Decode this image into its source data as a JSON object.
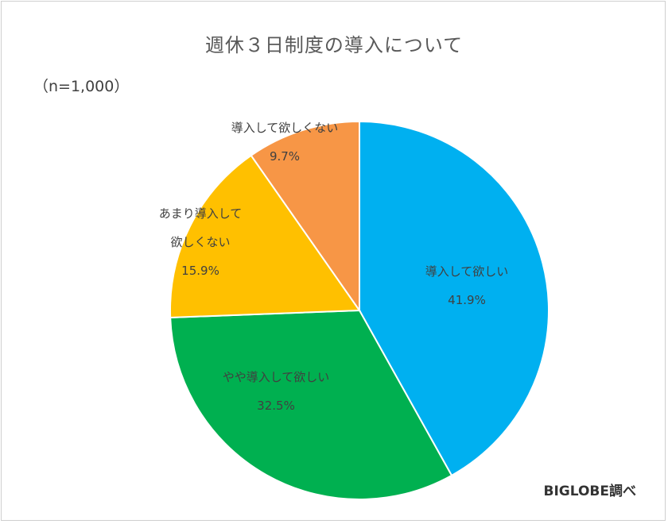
{
  "chart_data": {
    "type": "pie",
    "title": "週休３日制度の導入について",
    "subtitle": "（n=1,000）",
    "source": "BIGLOBE調べ",
    "slices": [
      {
        "label": "導入して欲しい",
        "value": 41.9,
        "value_label": "41.9%",
        "color": "#00b0f0"
      },
      {
        "label": "やや導入して欲しい",
        "value": 32.5,
        "value_label": "32.5%",
        "color": "#00b050"
      },
      {
        "label": "あまり導入して欲しくない",
        "value": 15.9,
        "value_label": "15.9%",
        "color": "#ffc000"
      },
      {
        "label": "導入して欲しくない",
        "value": 9.7,
        "value_label": "9.7%",
        "color": "#f79646"
      }
    ],
    "start_angle": "12 o'clock",
    "direction": "clockwise",
    "legend": "none"
  }
}
